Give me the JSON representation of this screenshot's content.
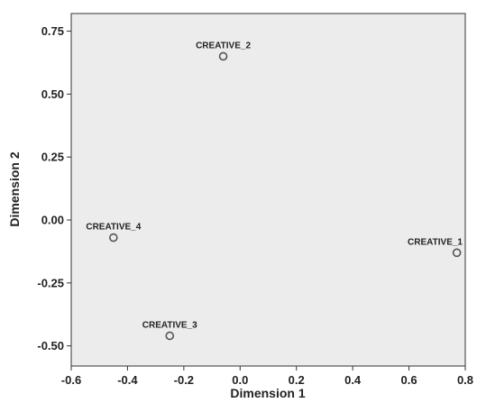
{
  "chart_data": {
    "type": "scatter",
    "title": "",
    "xlabel": "Dimension 1",
    "ylabel": "Dimension 2",
    "xlim": [
      -0.6,
      0.8
    ],
    "ylim": [
      -0.58,
      0.82
    ],
    "xticks": [
      -0.6,
      -0.4,
      -0.2,
      0.0,
      0.2,
      0.4,
      0.6,
      0.8
    ],
    "xtick_labels": [
      "-0.6",
      "-0.4",
      "-0.2",
      "0.0",
      "0.2",
      "0.4",
      "0.6",
      "0.8"
    ],
    "yticks": [
      -0.5,
      -0.25,
      0.0,
      0.25,
      0.5,
      0.75
    ],
    "ytick_labels": [
      "-0.50",
      "-0.25",
      "0.00",
      "0.25",
      "0.50",
      "0.75"
    ],
    "grid": false,
    "plot_background": "#ececec",
    "marker_color": "#555555",
    "points": [
      {
        "label": "CREATIVE_1",
        "x": 0.77,
        "y": -0.13
      },
      {
        "label": "CREATIVE_2",
        "x": -0.06,
        "y": 0.65
      },
      {
        "label": "CREATIVE_3",
        "x": -0.25,
        "y": -0.46
      },
      {
        "label": "CREATIVE_4",
        "x": -0.45,
        "y": -0.07
      }
    ]
  }
}
